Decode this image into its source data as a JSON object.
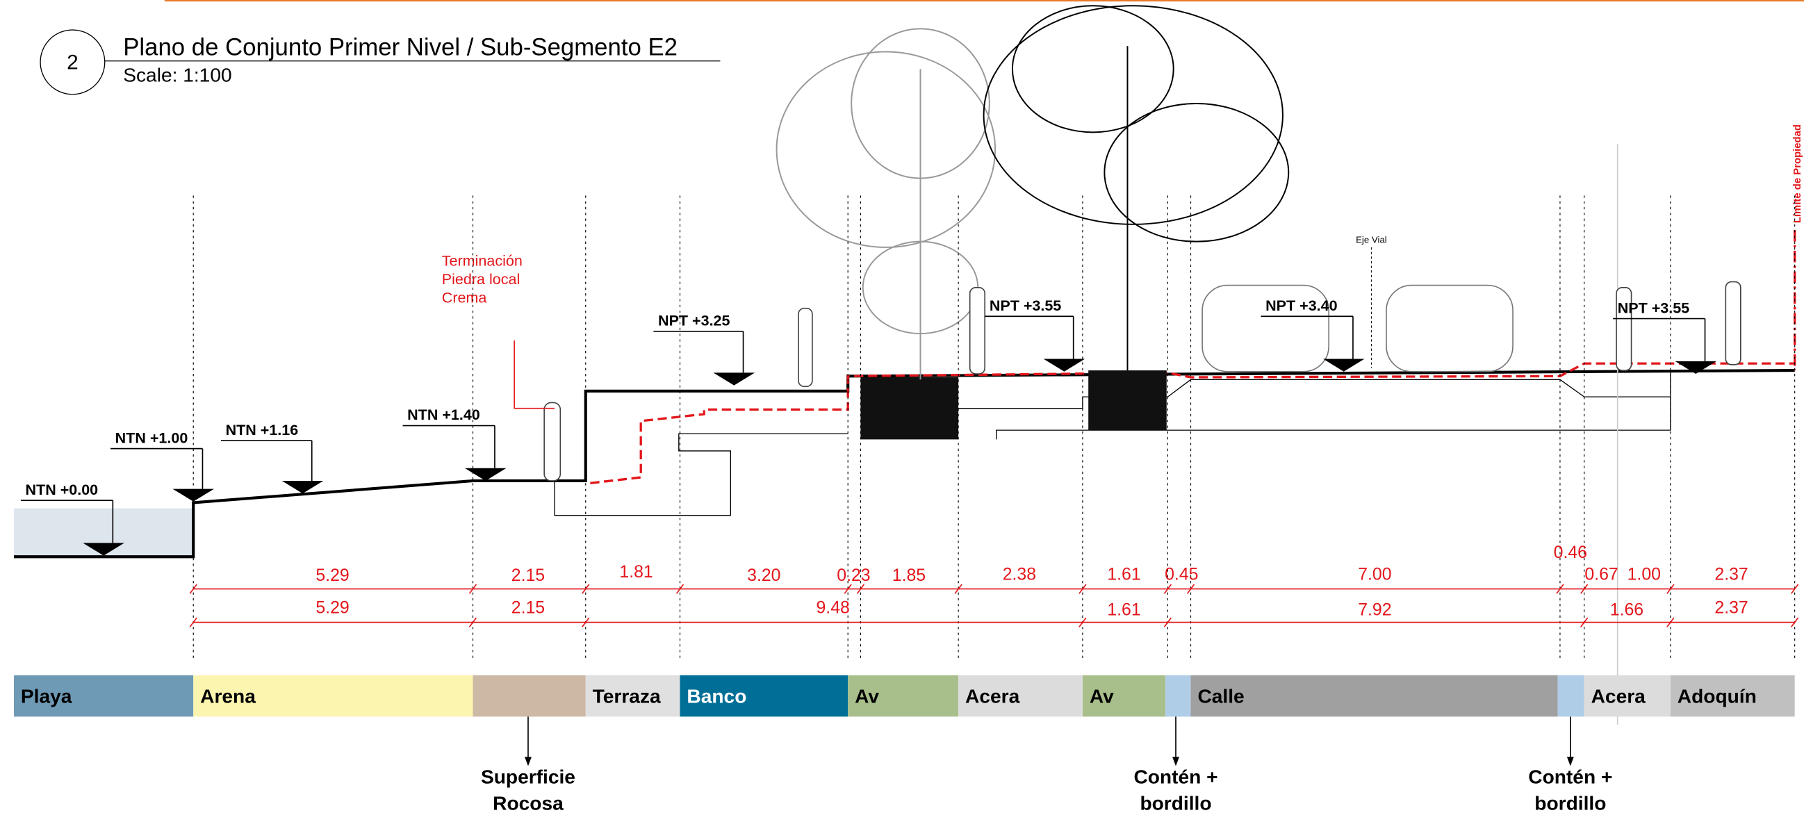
{
  "header": {
    "number": "2",
    "title": "Plano de Conjunto Primer Nivel / Sub-Segmento E2",
    "scale": "Scale: 1:100"
  },
  "levels": [
    "NTN +0.00",
    "NTN +1.00",
    "NTN +1.16",
    "NTN +1.40",
    "NPT +3.25",
    "NPT +3.55",
    "NPT +3.40",
    "NPT +3.55"
  ],
  "annotations": {
    "finish": [
      "Terminación",
      "Piedra local",
      "Crema"
    ],
    "axis": "Eje Vial",
    "property": "Límite de Propiedad"
  },
  "dimensions": {
    "row1": [
      "5.29",
      "2.15",
      "1.81",
      "3.20",
      "0.23",
      "1.85",
      "2.38",
      "1.61",
      "0.45",
      "7.00",
      "0.46",
      "0.67",
      "1.00",
      "2.37"
    ],
    "row2": [
      "5.29",
      "2.15",
      "9.48",
      "1.61",
      "7.92",
      "1.66",
      "2.37"
    ]
  },
  "zones": [
    "Playa",
    "Arena",
    "Terraza",
    "Banco",
    "Av",
    "Acera",
    "Av",
    "Calle",
    "Acera",
    "Adoquín"
  ],
  "callouts": [
    [
      "Superficie",
      "Rocosa"
    ],
    [
      "Contén +",
      "bordillo"
    ],
    [
      "Contén +",
      "bordillo"
    ]
  ]
}
